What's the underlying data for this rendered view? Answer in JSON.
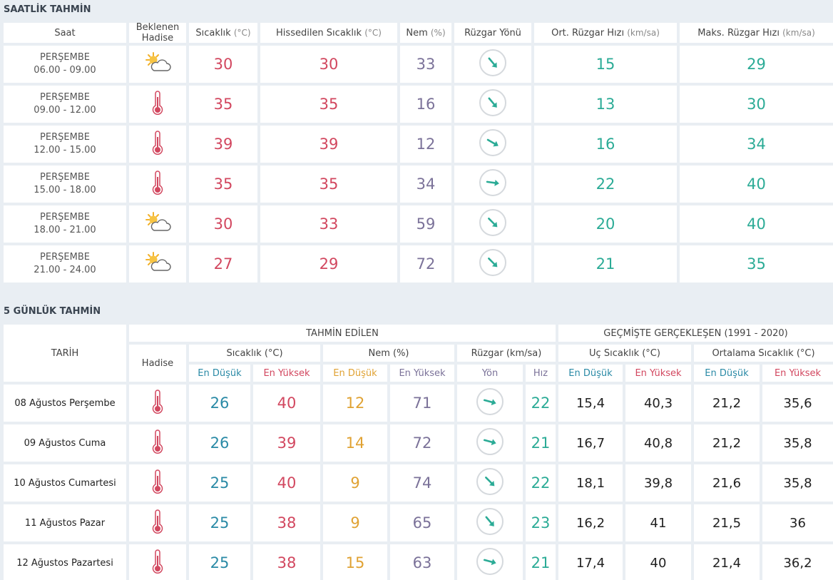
{
  "hourly": {
    "title": "SAATLİK TAHMİN",
    "columns": [
      {
        "label": "Saat"
      },
      {
        "label": "Beklenen Hadise"
      },
      {
        "label": "Sıcaklık",
        "unit": "(°C)"
      },
      {
        "label": "Hissedilen Sıcaklık",
        "unit": "(°C)"
      },
      {
        "label": "Nem",
        "unit": "(%)"
      },
      {
        "label": "Rüzgar Yönü"
      },
      {
        "label": "Ort. Rüzgar Hızı",
        "unit": "(km/sa)"
      },
      {
        "label": "Maks. Rüzgar Hızı",
        "unit": "(km/sa)"
      }
    ],
    "rows": [
      {
        "day": "PERŞEMBE",
        "time": "06.00 - 09.00",
        "temp": 30,
        "feels": 30,
        "humidity": 33,
        "wind_avg": 15,
        "wind_max": 29
      },
      {
        "day": "PERŞEMBE",
        "time": "09.00 - 12.00",
        "temp": 35,
        "feels": 35,
        "humidity": 16,
        "wind_avg": 13,
        "wind_max": 30
      },
      {
        "day": "PERŞEMBE",
        "time": "12.00 - 15.00",
        "temp": 39,
        "feels": 39,
        "humidity": 12,
        "wind_avg": 16,
        "wind_max": 34
      },
      {
        "day": "PERŞEMBE",
        "time": "15.00 - 18.00",
        "temp": 35,
        "feels": 35,
        "humidity": 34,
        "wind_avg": 22,
        "wind_max": 40
      },
      {
        "day": "PERŞEMBE",
        "time": "18.00 - 21.00",
        "temp": 30,
        "feels": 33,
        "humidity": 59,
        "wind_avg": 20,
        "wind_max": 40
      },
      {
        "day": "PERŞEMBE",
        "time": "21.00 - 24.00",
        "temp": 27,
        "feels": 29,
        "humidity": 72,
        "wind_avg": 21,
        "wind_max": 35
      }
    ]
  },
  "daily": {
    "title": "5 GÜNLÜK TAHMİN",
    "header": {
      "date": "TARİH",
      "forecast": "TAHMİN EDİLEN",
      "history": "GEÇMİŞTE GERÇEKLEŞEN (1991 - 2020)",
      "event": "Hadise",
      "groups": [
        "Sıcaklık (°C)",
        "Nem (%)",
        "Rüzgar (km/sa)",
        "Uç Sıcaklık (°C)",
        "Ortalama Sıcaklık (°C)"
      ],
      "sub": [
        "En Düşük",
        "En Yüksek",
        "En Düşük",
        "En Yüksek",
        "Yön",
        "Hız",
        "En Düşük",
        "En Yüksek",
        "En Düşük",
        "En Yüksek"
      ]
    },
    "rows": [
      {
        "date": "08 Ağustos Perşembe",
        "temp_min": 26,
        "temp_max": 40,
        "hum_min": 12,
        "hum_max": 71,
        "wind": 22,
        "ext_min": "15,4",
        "ext_max": "40,3",
        "avg_min": "21,2",
        "avg_max": "35,6"
      },
      {
        "date": "09 Ağustos Cuma",
        "temp_min": 26,
        "temp_max": 39,
        "hum_min": 14,
        "hum_max": 72,
        "wind": 21,
        "ext_min": "16,7",
        "ext_max": "40,8",
        "avg_min": "21,2",
        "avg_max": "35,8"
      },
      {
        "date": "10 Ağustos Cumartesi",
        "temp_min": 25,
        "temp_max": 40,
        "hum_min": 9,
        "hum_max": 74,
        "wind": 22,
        "ext_min": "18,1",
        "ext_max": "39,8",
        "avg_min": "21,6",
        "avg_max": "35,8"
      },
      {
        "date": "11 Ağustos Pazar",
        "temp_min": 25,
        "temp_max": 38,
        "hum_min": 9,
        "hum_max": 65,
        "wind": 23,
        "ext_min": "16,2",
        "ext_max": "41",
        "avg_min": "21,5",
        "avg_max": "36"
      },
      {
        "date": "12 Ağustos Pazartesi",
        "temp_min": 25,
        "temp_max": 38,
        "hum_min": 15,
        "hum_max": 63,
        "wind": 21,
        "ext_min": "17,4",
        "ext_max": "40",
        "avg_min": "21,4",
        "avg_max": "36,2"
      }
    ]
  }
}
